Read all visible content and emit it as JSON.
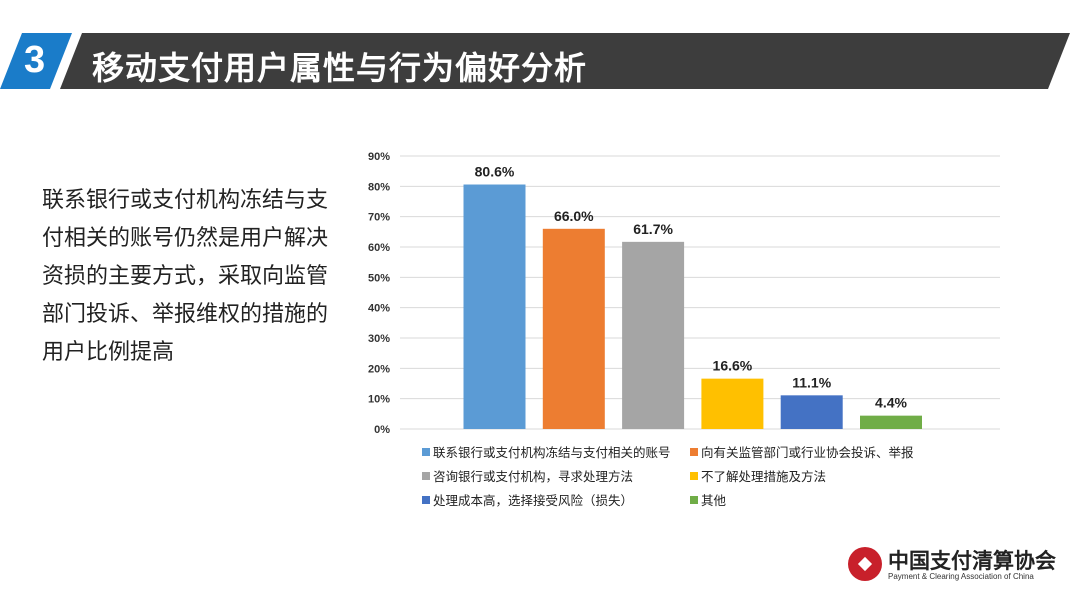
{
  "header": {
    "number": "3",
    "title": "移动支付用户属性与行为偏好分析"
  },
  "description": "联系银行或支付机构冻结与支付相关的账号仍然是用户解决资损的主要方式，采取向监管部门投诉、举报维权的措施的用户比例提高",
  "chart_data": {
    "type": "bar",
    "title": "",
    "xlabel": "",
    "ylabel": "",
    "ylim": [
      0,
      90
    ],
    "yticks": [
      "0%",
      "10%",
      "20%",
      "30%",
      "40%",
      "50%",
      "60%",
      "70%",
      "80%",
      "90%"
    ],
    "grid": true,
    "legend_position": "bottom",
    "categories": [
      "联系银行或支付机构冻结与支付相关的账号",
      "向有关监管部门或行业协会投诉、举报",
      "咨询银行或支付机构，寻求处理方法",
      "不了解处理措施及方法",
      "处理成本高，选择接受风险（损失）",
      "其他"
    ],
    "values": [
      80.6,
      66.0,
      61.7,
      16.6,
      11.1,
      4.4
    ],
    "labels": [
      "80.6%",
      "66.0%",
      "61.7%",
      "16.6%",
      "11.1%",
      "4.4%"
    ],
    "colors": [
      "#5b9bd5",
      "#ed7d31",
      "#a5a5a5",
      "#ffc000",
      "#4472c4",
      "#70ad47"
    ]
  },
  "logo": {
    "name_cn": "中国支付清算协会",
    "name_en": "Payment & Clearing Association of China"
  }
}
